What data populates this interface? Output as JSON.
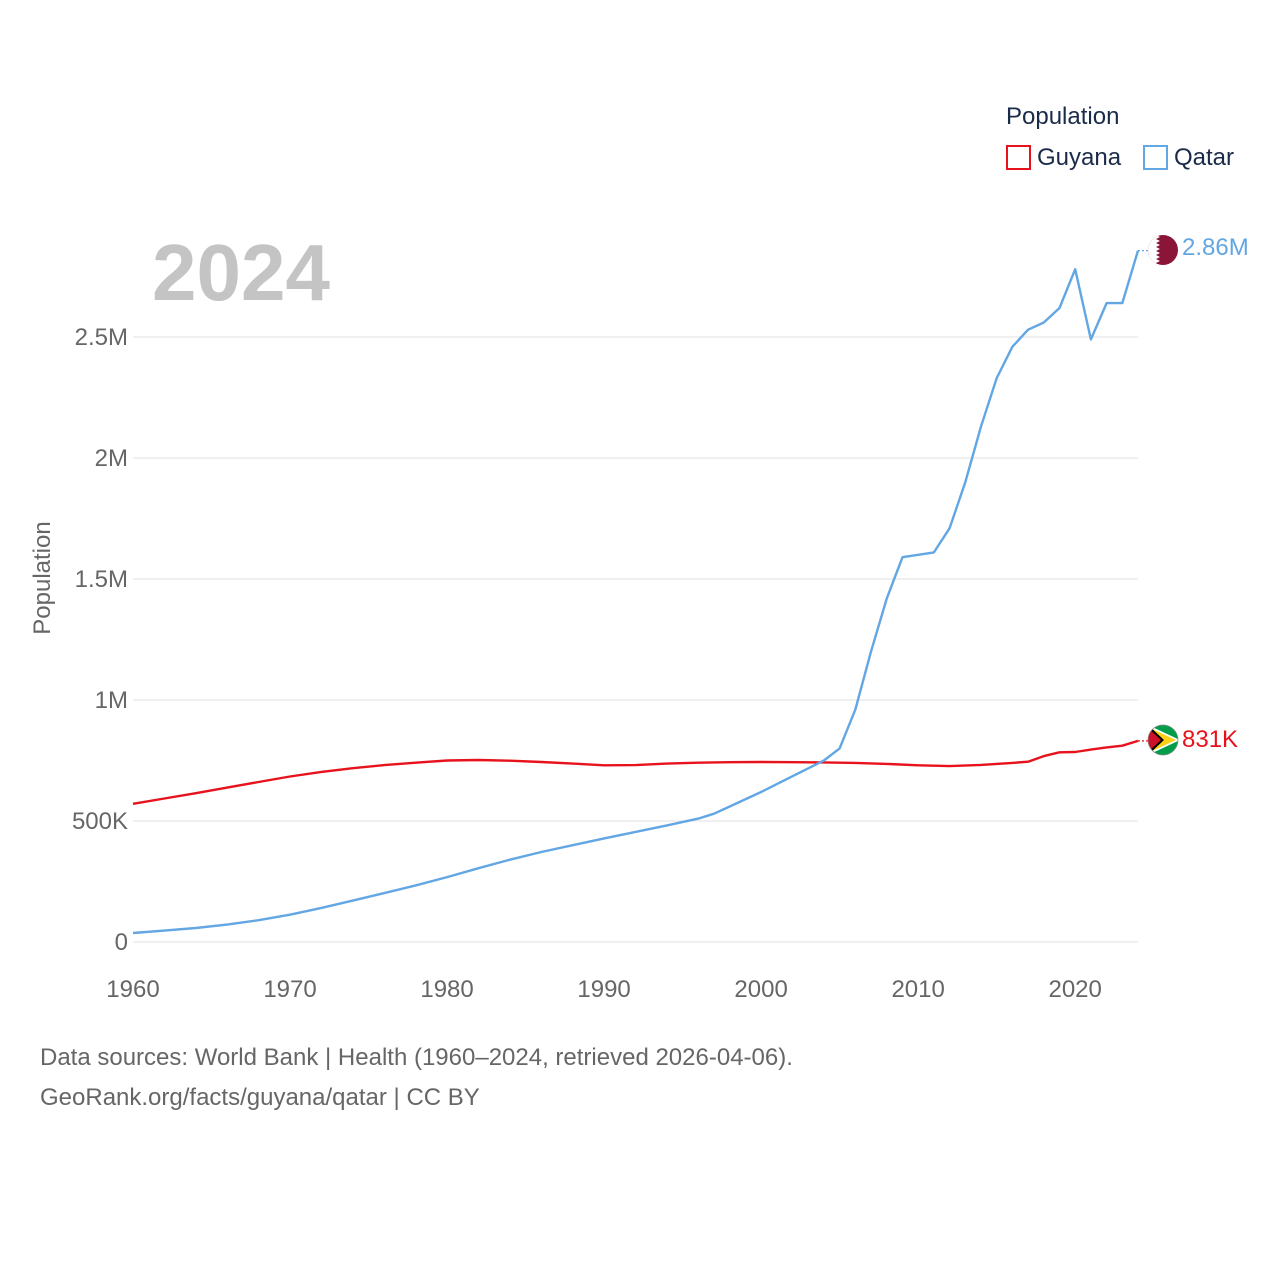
{
  "chart_data": {
    "type": "line",
    "year_label": "2024",
    "ylabel": "Population",
    "xlabel": "",
    "x_ticks": [
      1960,
      1970,
      1980,
      1990,
      2000,
      2010,
      2020
    ],
    "x_tick_labels": [
      "1960",
      "1970",
      "1980",
      "1990",
      "2000",
      "2010",
      "2020"
    ],
    "y_ticks": [
      0,
      500000,
      1000000,
      1500000,
      2000000,
      2500000
    ],
    "y_tick_labels": [
      "0",
      "500K",
      "1M",
      "1.5M",
      "2M",
      "2.5M"
    ],
    "xlim": [
      1960,
      2024
    ],
    "ylim": [
      0,
      2500000
    ],
    "grid": true,
    "legend": {
      "title": "Population",
      "placement": "top-right"
    },
    "series": [
      {
        "name": "Guyana",
        "color": "#e8121c",
        "end_label": "831K",
        "flag_icon": "guyana-flag-icon",
        "x": [
          1960,
          1962,
          1964,
          1966,
          1968,
          1970,
          1972,
          1974,
          1976,
          1978,
          1980,
          1982,
          1984,
          1986,
          1988,
          1990,
          1992,
          1994,
          1996,
          1998,
          2000,
          2002,
          2004,
          2006,
          2008,
          2010,
          2012,
          2014,
          2016,
          2017,
          2018,
          2019,
          2020,
          2021,
          2022,
          2023,
          2024
        ],
        "values": [
          571000,
          593000,
          615000,
          638000,
          661000,
          684000,
          703000,
          718000,
          731000,
          741000,
          750000,
          752000,
          749000,
          744000,
          737000,
          730000,
          731000,
          737000,
          741000,
          743000,
          744000,
          743000,
          742000,
          740000,
          736000,
          730000,
          727000,
          732000,
          740000,
          745000,
          768000,
          784000,
          785000,
          795000,
          804000,
          811000,
          831000
        ]
      },
      {
        "name": "Qatar",
        "color": "#62a6e3",
        "end_label": "2.86M",
        "flag_icon": "qatar-flag-icon",
        "x": [
          1960,
          1962,
          1964,
          1966,
          1968,
          1970,
          1972,
          1974,
          1976,
          1978,
          1980,
          1982,
          1984,
          1986,
          1988,
          1990,
          1992,
          1994,
          1996,
          1997,
          1998,
          2000,
          2002,
          2004,
          2005,
          2006,
          2007,
          2008,
          2009,
          2010,
          2011,
          2012,
          2013,
          2014,
          2015,
          2016,
          2017,
          2018,
          2019,
          2020,
          2021,
          2022,
          2023,
          2024
        ],
        "values": [
          37000,
          47000,
          58000,
          72000,
          90000,
          113000,
          141000,
          171000,
          202000,
          234000,
          268000,
          305000,
          340000,
          372000,
          400000,
          428000,
          455000,
          482000,
          510000,
          530000,
          560000,
          620000,
          685000,
          750000,
          800000,
          960000,
          1200000,
          1420000,
          1590000,
          1600000,
          1610000,
          1710000,
          1900000,
          2130000,
          2330000,
          2460000,
          2530000,
          2560000,
          2620000,
          2780000,
          2490000,
          2640000,
          2640000,
          2857000
        ]
      }
    ]
  },
  "footer": {
    "sources": "Data sources: World Bank | Health (1960–2024, retrieved 2026-04-06).",
    "credit": "GeoRank.org/facts/guyana/qatar | CC BY"
  }
}
